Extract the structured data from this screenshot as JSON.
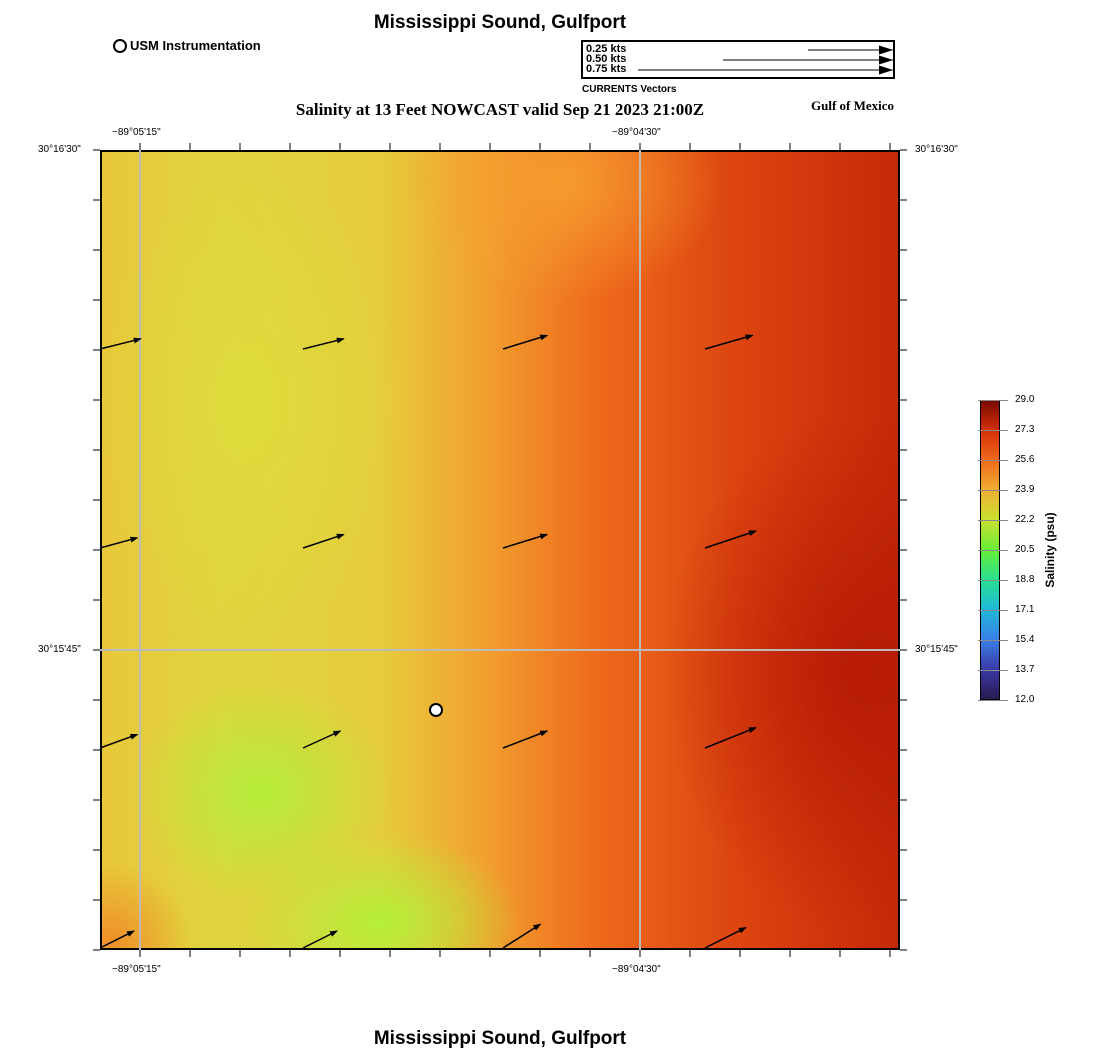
{
  "title_top": "Mississippi Sound, Gulfport",
  "title_bottom": "Mississippi Sound, Gulfport",
  "subtitle": "Salinity at 13 Feet NOWCAST valid Sep 21 2023 21:00Z",
  "region_label": "Gulf of Mexico",
  "station_legend": "USM Instrumentation",
  "vector_legend": {
    "title": "CURRENTS Vectors",
    "items": [
      {
        "label": "0.25 kts",
        "speed": 0.25
      },
      {
        "label": "0.50 kts",
        "speed": 0.5
      },
      {
        "label": "0.75 kts",
        "speed": 0.75
      }
    ]
  },
  "axes": {
    "lon_labels": [
      "−89°05'15\"",
      "−89°04'30\""
    ],
    "lat_labels": [
      "30°16'30\"",
      "30°15'45\""
    ]
  },
  "colorbar": {
    "label": "Salinity (psu)",
    "ticks": [
      "29.0",
      "27.3",
      "25.6",
      "23.9",
      "22.2",
      "20.5",
      "18.8",
      "17.1",
      "15.4",
      "13.7",
      "12.0"
    ],
    "min": 12.0,
    "max": 29.0
  },
  "chart_data": {
    "type": "heatmap",
    "variable": "Salinity (psu)",
    "range": [
      12.0,
      29.0
    ],
    "description_values": {
      "west": 22.5,
      "southwest_min": 21,
      "center": 24.5,
      "east_max": 28.5
    },
    "vectors_kts": [
      [
        [
          0.12,
          0.03
        ],
        [
          0.12,
          0.03
        ],
        [
          0.13,
          0.04
        ],
        [
          0.14,
          0.04
        ]
      ],
      [
        [
          0.11,
          0.03
        ],
        [
          0.12,
          0.04
        ],
        [
          0.13,
          0.04
        ],
        [
          0.15,
          0.05
        ]
      ],
      [
        [
          0.11,
          0.04
        ],
        [
          0.11,
          0.05
        ],
        [
          0.13,
          0.05
        ],
        [
          0.15,
          0.06
        ]
      ],
      [
        [
          0.1,
          0.05
        ],
        [
          0.1,
          0.05
        ],
        [
          0.11,
          0.07
        ],
        [
          0.12,
          0.06
        ]
      ]
    ]
  }
}
